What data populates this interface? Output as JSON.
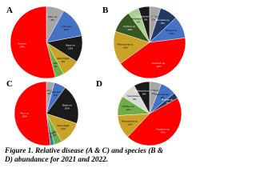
{
  "chart_data": [
    {
      "type": "pie",
      "title": "A",
      "categories": [
        "Stem rot",
        "Leaf spot",
        "Black rot",
        "Early blight",
        "Wilt",
        "Root rot"
      ],
      "values": [
        8,
        14,
        12,
        8,
        4,
        54
      ],
      "value_labels": [
        "8%",
        "14%",
        "12%",
        "8%",
        "4%",
        "54%"
      ],
      "colors": [
        "#a6a6a6",
        "#4472c4",
        "#1a1a1a",
        "#c9a227",
        "#70ad47",
        "#ff0000"
      ]
    },
    {
      "type": "pie",
      "title": "B",
      "categories": [
        "Phytophthora sp.",
        "Alternaria sp.",
        "Botrytis sp.",
        "Fusarium sp.",
        "Rhizoctonia sp.",
        "Pythium sp.",
        "Verticillium sp.",
        "Colletotrichum sp."
      ],
      "values": [
        5,
        8,
        10,
        42,
        15,
        10,
        5,
        5
      ],
      "value_labels": [
        "5%",
        "8%",
        "10%",
        "42%",
        "15%",
        "10%",
        "5%",
        "5%"
      ],
      "colors": [
        "#a6a6a6",
        "#203864",
        "#4472c4",
        "#ff0000",
        "#c9a227",
        "#385723",
        "#a9d18e",
        "#1a1a1a"
      ]
    },
    {
      "type": "pie",
      "title": "C",
      "categories": [
        "Stem rot",
        "Leaf spot",
        "Black rot",
        "Early blight",
        "Wilt",
        "Canker",
        "Root rot"
      ],
      "values": [
        4,
        6,
        20,
        12,
        4,
        2,
        52
      ],
      "value_labels": [
        "4%",
        "6%",
        "20%",
        "12%",
        "4%",
        "2%",
        "52%"
      ],
      "colors": [
        "#a6a6a6",
        "#4472c4",
        "#1a1a1a",
        "#c9a227",
        "#70ad47",
        "#2e8b8b",
        "#ff0000"
      ]
    },
    {
      "type": "pie",
      "title": "D",
      "categories": [
        "Phytophthora sp.",
        "Alternaria sp.",
        "Botrytis sp.",
        "Fusarium sp.",
        "Rhizoctonia sp.",
        "Pythium sp.",
        "Sclerotinia sp.",
        "Colletotrichum sp."
      ],
      "values": [
        6,
        8,
        3,
        45,
        12,
        10,
        8,
        8
      ],
      "value_labels": [
        "6%",
        "8%",
        "3%",
        "45%",
        "12%",
        "10%",
        "8%",
        "8%"
      ],
      "colors": [
        "#a6a6a6",
        "#4472c4",
        "#203864",
        "#ff0000",
        "#c9a227",
        "#70ad47",
        "#d9d9d9",
        "#1a1a1a"
      ]
    }
  ],
  "caption": "Figure 1. Relative disease (A & C) and species (B & D) abundance for 2021 and 2022."
}
